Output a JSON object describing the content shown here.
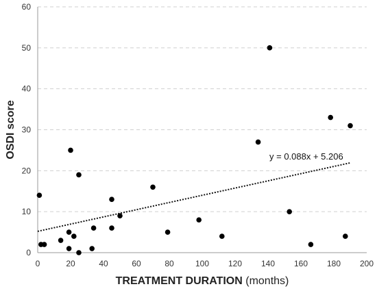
{
  "chart_data": {
    "type": "scatter",
    "xlabel_bold": "TREATMENT DURATION",
    "xlabel_rest": " (months)",
    "ylabel": "OSDI score",
    "xlim": [
      0,
      200
    ],
    "ylim": [
      0,
      60
    ],
    "x_ticks": [
      0,
      20,
      40,
      60,
      80,
      100,
      120,
      140,
      160,
      180,
      200
    ],
    "y_ticks": [
      0,
      10,
      20,
      30,
      40,
      50,
      60
    ],
    "grid": "horizontal dashed",
    "trendline": {
      "label": "y = 0.088x + 5.206",
      "slope": 0.088,
      "intercept": 5.206,
      "x_range": [
        0,
        190
      ]
    },
    "points": [
      {
        "x": 1,
        "y": 14
      },
      {
        "x": 2,
        "y": 2
      },
      {
        "x": 4,
        "y": 2
      },
      {
        "x": 14,
        "y": 3
      },
      {
        "x": 19,
        "y": 5
      },
      {
        "x": 19,
        "y": 1
      },
      {
        "x": 20,
        "y": 25
      },
      {
        "x": 22,
        "y": 4
      },
      {
        "x": 25,
        "y": 19
      },
      {
        "x": 25,
        "y": 0
      },
      {
        "x": 33,
        "y": 1
      },
      {
        "x": 34,
        "y": 6
      },
      {
        "x": 45,
        "y": 13
      },
      {
        "x": 45,
        "y": 6
      },
      {
        "x": 50,
        "y": 9
      },
      {
        "x": 70,
        "y": 16
      },
      {
        "x": 79,
        "y": 5
      },
      {
        "x": 98,
        "y": 8
      },
      {
        "x": 112,
        "y": 4
      },
      {
        "x": 134,
        "y": 27
      },
      {
        "x": 141,
        "y": 50
      },
      {
        "x": 153,
        "y": 10
      },
      {
        "x": 166,
        "y": 2
      },
      {
        "x": 178,
        "y": 33
      },
      {
        "x": 187,
        "y": 4
      },
      {
        "x": 190,
        "y": 31
      }
    ]
  }
}
